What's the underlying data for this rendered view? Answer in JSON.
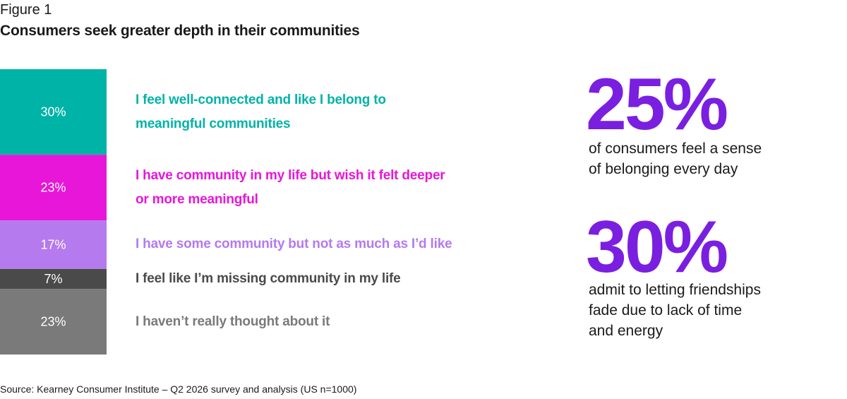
{
  "figure": {
    "label": "Figure 1",
    "title": "Consumers seek greater depth in their communities"
  },
  "chart_data": {
    "type": "bar",
    "orientation": "stacked-vertical",
    "categories": [
      "I feel well-connected and like I belong to meaningful communities",
      "I have community in my life but wish it felt deeper or more meaningful",
      "I have some community but not as much as I’d like",
      "I feel like I’m missing community in my life",
      "I haven’t really thought about it"
    ],
    "values": [
      30,
      23,
      17,
      7,
      23
    ],
    "value_labels": [
      "30%",
      "23%",
      "17%",
      "7%",
      "23%"
    ],
    "colors": [
      "#00b3a7",
      "#e816d8",
      "#b57aee",
      "#4a4a4a",
      "#7a7a7a"
    ],
    "label_colors": [
      "#00b3a7",
      "#e816d8",
      "#b57aee",
      "#4a4a4a",
      "#7a7a7a"
    ],
    "label_lines": [
      [
        "I feel well-connected and like I belong to",
        "meaningful communities"
      ],
      [
        "I have community in my life but wish it felt deeper",
        "or more meaningful"
      ],
      [
        "I have some community but not as much as I’d like"
      ],
      [
        "I feel like I’m missing community in my life"
      ],
      [
        "I haven’t really thought about it"
      ]
    ]
  },
  "stats": [
    {
      "value": "25%",
      "lines": [
        "of consumers feel a sense",
        "of belonging every day"
      ]
    },
    {
      "value": "30%",
      "lines": [
        "admit to letting friendships",
        "fade due to lack of time",
        "and energy"
      ]
    }
  ],
  "accent_color": "#7a1fe0",
  "source": "Source: Kearney Consumer Institute – Q2 2026 survey and analysis (US n=1000)"
}
